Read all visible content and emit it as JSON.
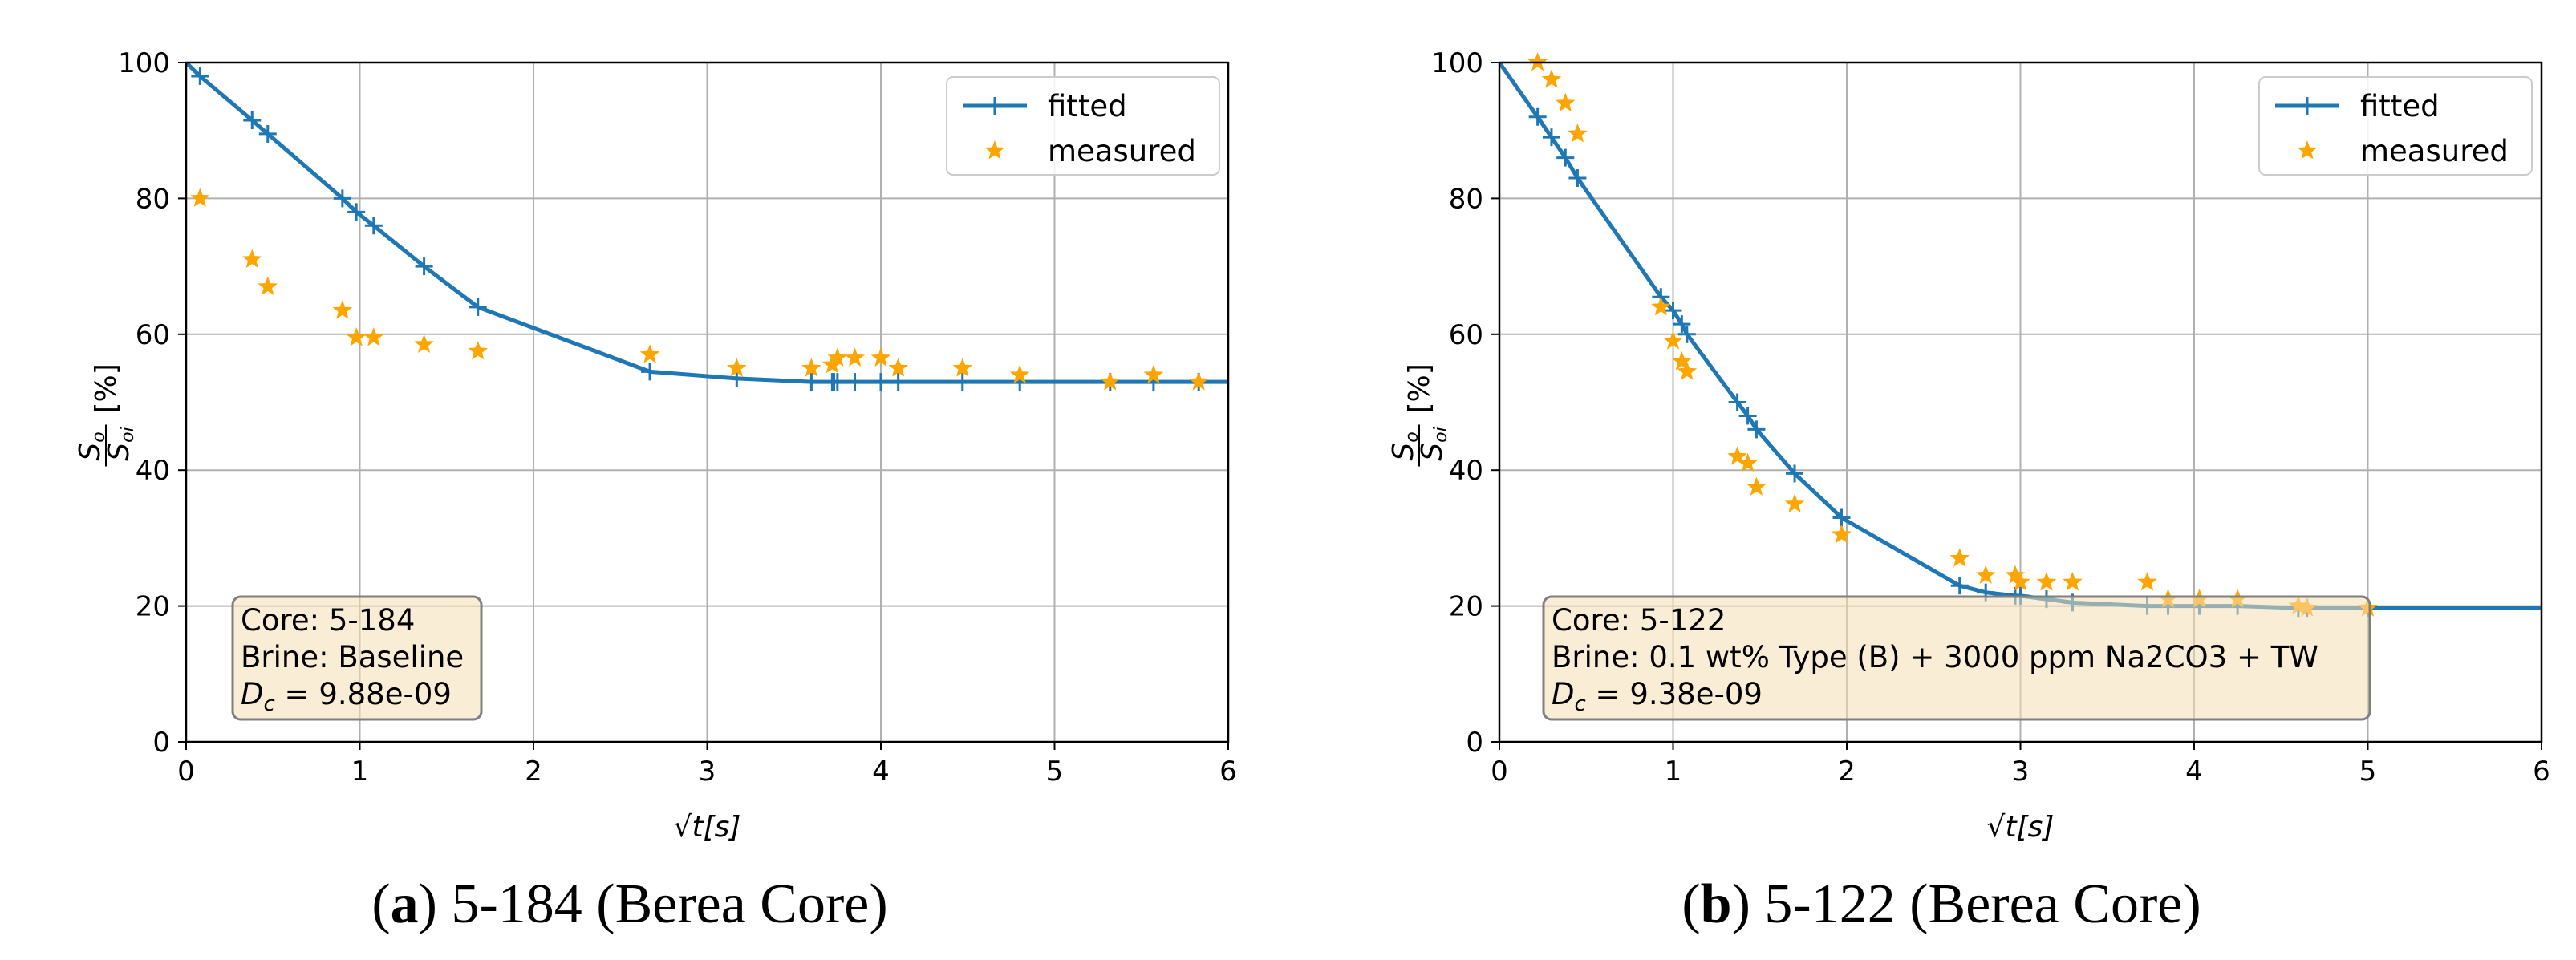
{
  "chart_data": [
    {
      "type": "line",
      "caption_letter": "a",
      "caption_text": " 5-184 (Berea Core)",
      "caption_prefix": "(",
      "caption_suffix": ")",
      "xlabel": "√t[s]",
      "ylabel": "So/Soi [%]",
      "ylabel_numerator": "S",
      "ylabel_num_sub": "o",
      "ylabel_denominator": "S",
      "ylabel_den_sub": "oi",
      "ylabel_unit": "[%]",
      "xlim": [
        0,
        6
      ],
      "ylim": [
        0,
        100
      ],
      "x_ticks": [
        0,
        1,
        2,
        3,
        4,
        5,
        6
      ],
      "y_ticks": [
        0,
        20,
        40,
        60,
        80,
        100
      ],
      "x_tick_labels": [
        "0",
        "1",
        "2",
        "3",
        "4",
        "5",
        "6"
      ],
      "y_tick_labels": [
        "0",
        "20",
        "40",
        "60",
        "80",
        "100"
      ],
      "grid": true,
      "legend_position": "top-right",
      "legend": [
        "fitted",
        "measured"
      ],
      "series": [
        {
          "name": "fitted",
          "style": "line-plus",
          "color": "#1f77b4",
          "x": [
            0,
            0.08,
            0.38,
            0.47,
            0.9,
            0.98,
            1.08,
            1.37,
            1.68,
            2.67,
            3.17,
            3.6,
            3.72,
            3.73,
            3.75,
            3.85,
            4.0,
            4.1,
            4.47,
            4.8,
            5.32,
            5.57,
            5.83,
            6.0
          ],
          "y": [
            100,
            98,
            91.5,
            89.5,
            80,
            78,
            76,
            70,
            64,
            54.5,
            53.5,
            53,
            53,
            53,
            53,
            53,
            53,
            53,
            53,
            53,
            53,
            53,
            53,
            53
          ],
          "markers": [
            false,
            true,
            true,
            true,
            true,
            true,
            true,
            true,
            true,
            true,
            true,
            true,
            true,
            true,
            true,
            true,
            true,
            true,
            true,
            true,
            true,
            true,
            true,
            false
          ]
        },
        {
          "name": "measured",
          "style": "star",
          "color": "#ffa500",
          "x": [
            0.08,
            0.38,
            0.47,
            0.9,
            0.98,
            1.08,
            1.37,
            1.68,
            2.67,
            3.17,
            3.6,
            3.72,
            3.75,
            3.85,
            4.0,
            4.1,
            4.47,
            4.8,
            5.32,
            5.57,
            5.83
          ],
          "y": [
            80,
            71,
            67,
            63.5,
            59.5,
            59.5,
            58.5,
            57.5,
            57,
            55,
            55,
            55.5,
            56.5,
            56.5,
            56.5,
            55,
            55,
            54,
            53,
            54,
            53
          ]
        }
      ],
      "annotation_box": {
        "line1": "Core: 5-184",
        "line2": "Brine: Baseline",
        "line3_symbol": "D",
        "line3_sub": "c",
        "line3_value": " = 9.88e-09"
      }
    },
    {
      "type": "line",
      "caption_letter": "b",
      "caption_text": " 5-122 (Berea Core)",
      "caption_prefix": "(",
      "caption_suffix": ")",
      "xlabel": "√t[s]",
      "ylabel": "So/Soi [%]",
      "ylabel_numerator": "S",
      "ylabel_num_sub": "o",
      "ylabel_denominator": "S",
      "ylabel_den_sub": "oi",
      "ylabel_unit": "[%]",
      "xlim": [
        0,
        6
      ],
      "ylim": [
        0,
        100
      ],
      "x_ticks": [
        0,
        1,
        2,
        3,
        4,
        5,
        6
      ],
      "y_ticks": [
        0,
        20,
        40,
        60,
        80,
        100
      ],
      "x_tick_labels": [
        "0",
        "1",
        "2",
        "3",
        "4",
        "5",
        "6"
      ],
      "y_tick_labels": [
        "0",
        "20",
        "40",
        "60",
        "80",
        "100"
      ],
      "grid": true,
      "legend_position": "top-right",
      "legend": [
        "fitted",
        "measured"
      ],
      "series": [
        {
          "name": "fitted",
          "style": "line-plus",
          "color": "#1f77b4",
          "x": [
            0,
            0.22,
            0.3,
            0.38,
            0.45,
            0.93,
            1.0,
            1.05,
            1.08,
            1.37,
            1.43,
            1.48,
            1.7,
            1.97,
            2.65,
            2.8,
            2.97,
            3.0,
            3.15,
            3.3,
            3.73,
            3.85,
            4.03,
            4.25,
            4.6,
            4.65,
            5.0,
            6.0
          ],
          "y": [
            100,
            92,
            89,
            86,
            83,
            65.5,
            63.5,
            61.5,
            60,
            50,
            48,
            46,
            39.5,
            33,
            23,
            22,
            21.5,
            21.5,
            21,
            20.5,
            20,
            20,
            20,
            20,
            19.7,
            19.7,
            19.7,
            19.7
          ],
          "markers": [
            false,
            true,
            true,
            true,
            true,
            true,
            true,
            true,
            true,
            true,
            true,
            true,
            true,
            true,
            true,
            true,
            true,
            true,
            true,
            true,
            true,
            true,
            true,
            true,
            true,
            true,
            true,
            false
          ]
        },
        {
          "name": "measured",
          "style": "star",
          "color": "#ffa500",
          "x": [
            0.22,
            0.3,
            0.38,
            0.45,
            0.93,
            1.0,
            1.05,
            1.08,
            1.37,
            1.43,
            1.48,
            1.7,
            1.97,
            2.65,
            2.8,
            2.97,
            3.0,
            3.15,
            3.3,
            3.73,
            3.85,
            4.03,
            4.25,
            4.6,
            4.65,
            5.0
          ],
          "y": [
            100,
            97.5,
            94,
            89.5,
            64,
            59,
            56,
            54.5,
            42,
            41,
            37.5,
            35,
            30.5,
            27,
            24.5,
            24.5,
            23.5,
            23.5,
            23.5,
            23.5,
            21,
            21,
            21,
            20,
            19.7,
            19.7
          ]
        }
      ],
      "annotation_box": {
        "line1": "Core: 5-122",
        "line2": "Brine: 0.1 wt% Type (B) + 3000 ppm Na2CO3 + TW",
        "line3_symbol": "D",
        "line3_sub": "c",
        "line3_value": " = 9.38e-09"
      }
    }
  ]
}
